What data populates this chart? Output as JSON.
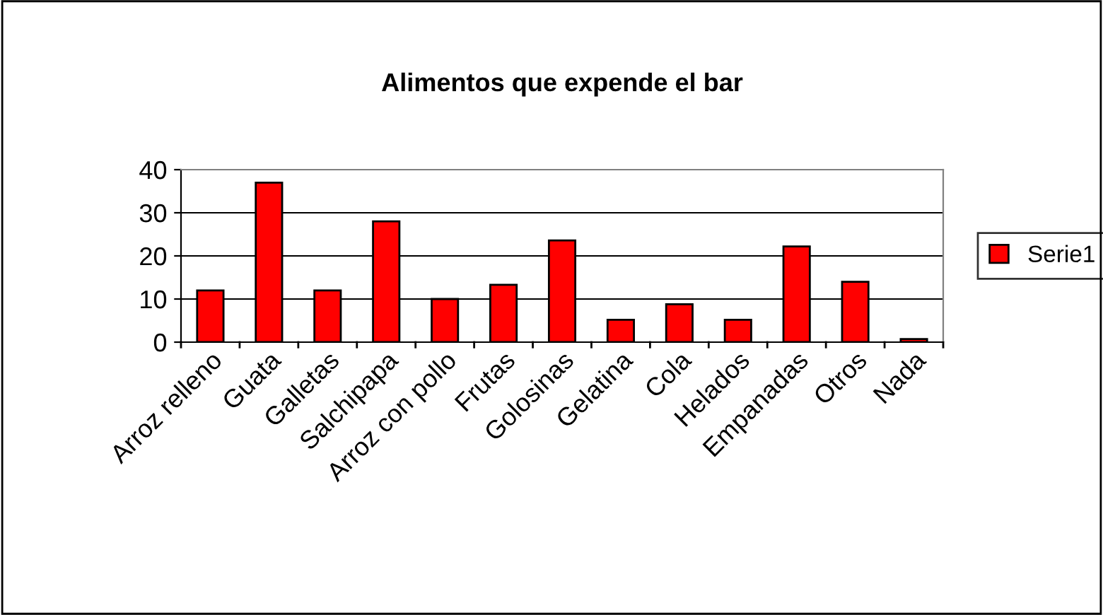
{
  "chart_data": {
    "type": "bar",
    "title": "Alimentos que expende el bar",
    "categories": [
      "Arroz relleno",
      "Guata",
      "Galletas",
      "Salchipapa",
      "Arroz con pollo",
      "Frutas",
      "Golosinas",
      "Gelatina",
      "Cola",
      "Helados",
      "Empanadas",
      "Otros",
      "Nada"
    ],
    "series": [
      {
        "name": "Serie1",
        "color": "#ff0000",
        "values": [
          12,
          37,
          12,
          28,
          10,
          13.3,
          23.6,
          5.2,
          8.8,
          5.2,
          22.2,
          14,
          0.7
        ]
      }
    ],
    "ylim": [
      0,
      40
    ],
    "yticks": [
      0,
      10,
      20,
      30,
      40
    ],
    "grid": "y",
    "legend": "right"
  }
}
